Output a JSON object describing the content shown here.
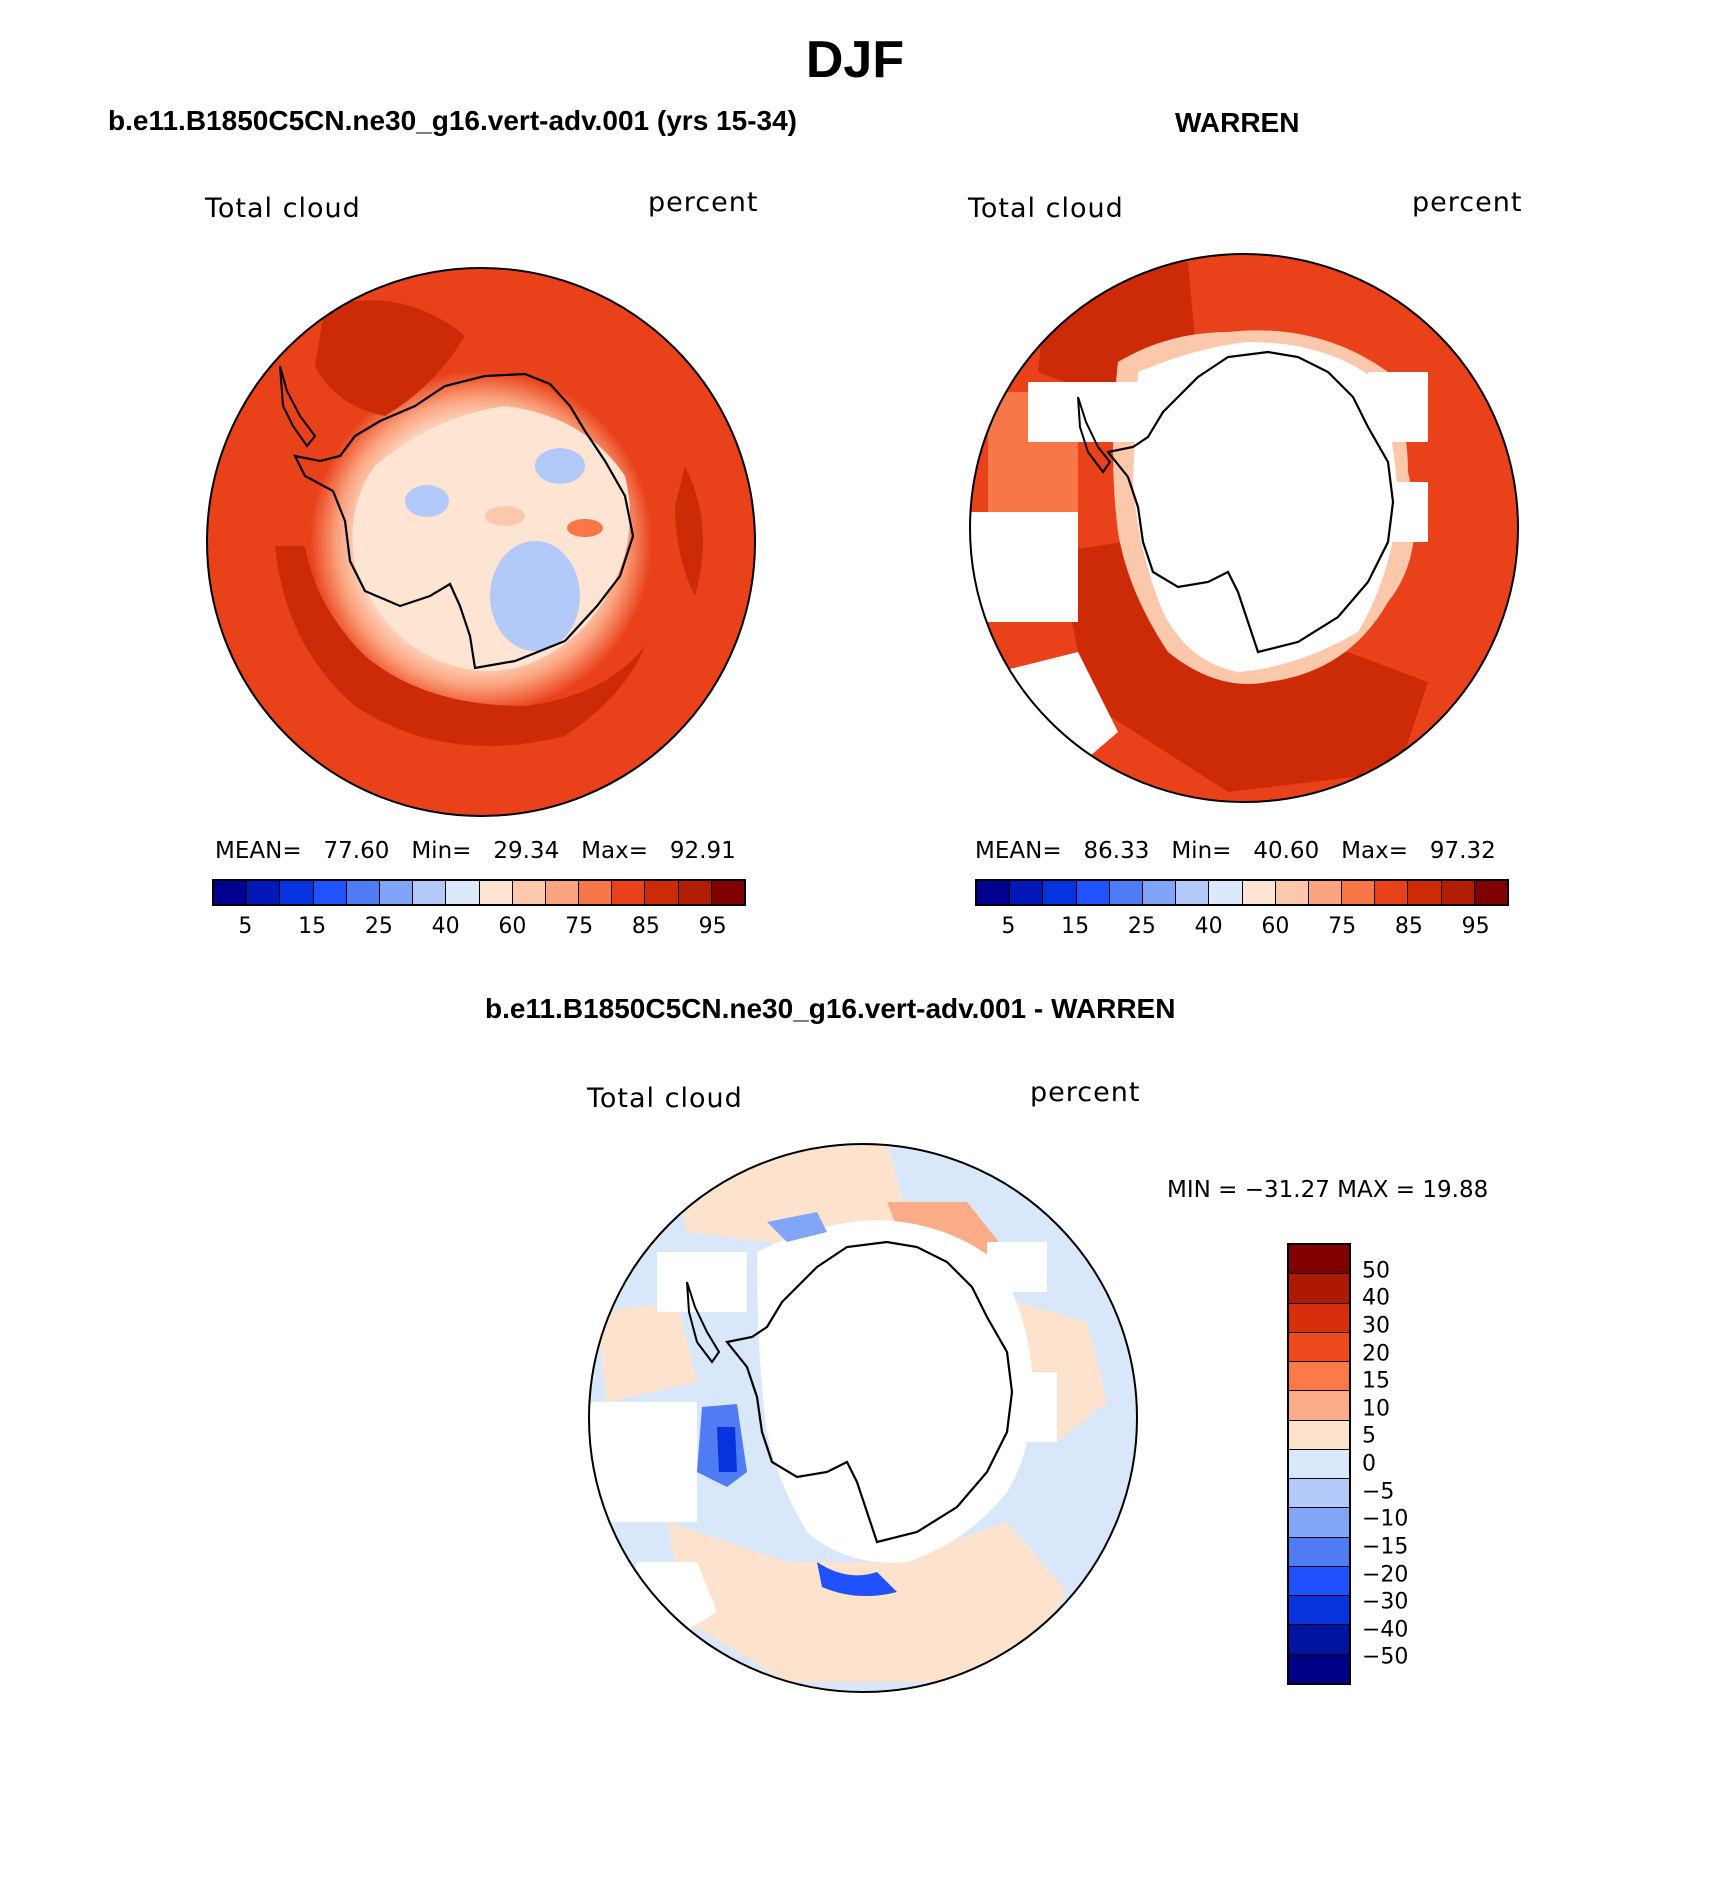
{
  "page_title": "DJF",
  "colors": {
    "seq": [
      "#00008e",
      "#0018b8",
      "#0633e0",
      "#2052ff",
      "#4f7cf2",
      "#80a5f8",
      "#b2c9fa",
      "#dbe9fb",
      "#fee5d3",
      "#fcc8ac",
      "#fba47f",
      "#f87748",
      "#e9421b",
      "#cd2b08",
      "#b01c04",
      "#800000"
    ],
    "div": [
      "#800000",
      "#ae1904",
      "#d62d0a",
      "#ed4a1e",
      "#fc7a47",
      "#fcac86",
      "#fde3cd",
      "#d8e8fa",
      "#b2c9fa",
      "#81a6f8",
      "#4f7cf2",
      "#1f51ff",
      "#0733dd",
      "#00159f",
      "#000086"
    ],
    "coast": "#000000",
    "land": "#ffffff"
  },
  "panels": {
    "left": {
      "title": "b.e11.B1850C5CN.ne30_g16.vert-adv.001 (yrs 15-34)",
      "var_label": "Total cloud",
      "units_label": "percent",
      "stats": {
        "mean_label": "MEAN=",
        "mean": "77.60",
        "min_label": "Min=",
        "min": "29.34",
        "max_label": "Max=",
        "max": "92.91"
      }
    },
    "right": {
      "title": "WARREN",
      "var_label": "Total cloud",
      "units_label": "percent",
      "stats": {
        "mean_label": "MEAN=",
        "mean": "86.33",
        "min_label": "Min=",
        "min": "40.60",
        "max_label": "Max=",
        "max": "97.32"
      }
    },
    "diff": {
      "title": "b.e11.B1850C5CN.ne30_g16.vert-adv.001 - WARREN",
      "var_label": "Total cloud",
      "units_label": "percent",
      "minmax_text": "MIN = −31.27  MAX =   19.88"
    }
  },
  "colorbar_ticks": [
    "5",
    "15",
    "25",
    "40",
    "60",
    "75",
    "85",
    "95"
  ],
  "diff_ticks": [
    "50",
    "40",
    "30",
    "20",
    "15",
    "10",
    "5",
    "0",
    "−5",
    "−10",
    "−15",
    "−20",
    "−30",
    "−40",
    "−50"
  ]
}
